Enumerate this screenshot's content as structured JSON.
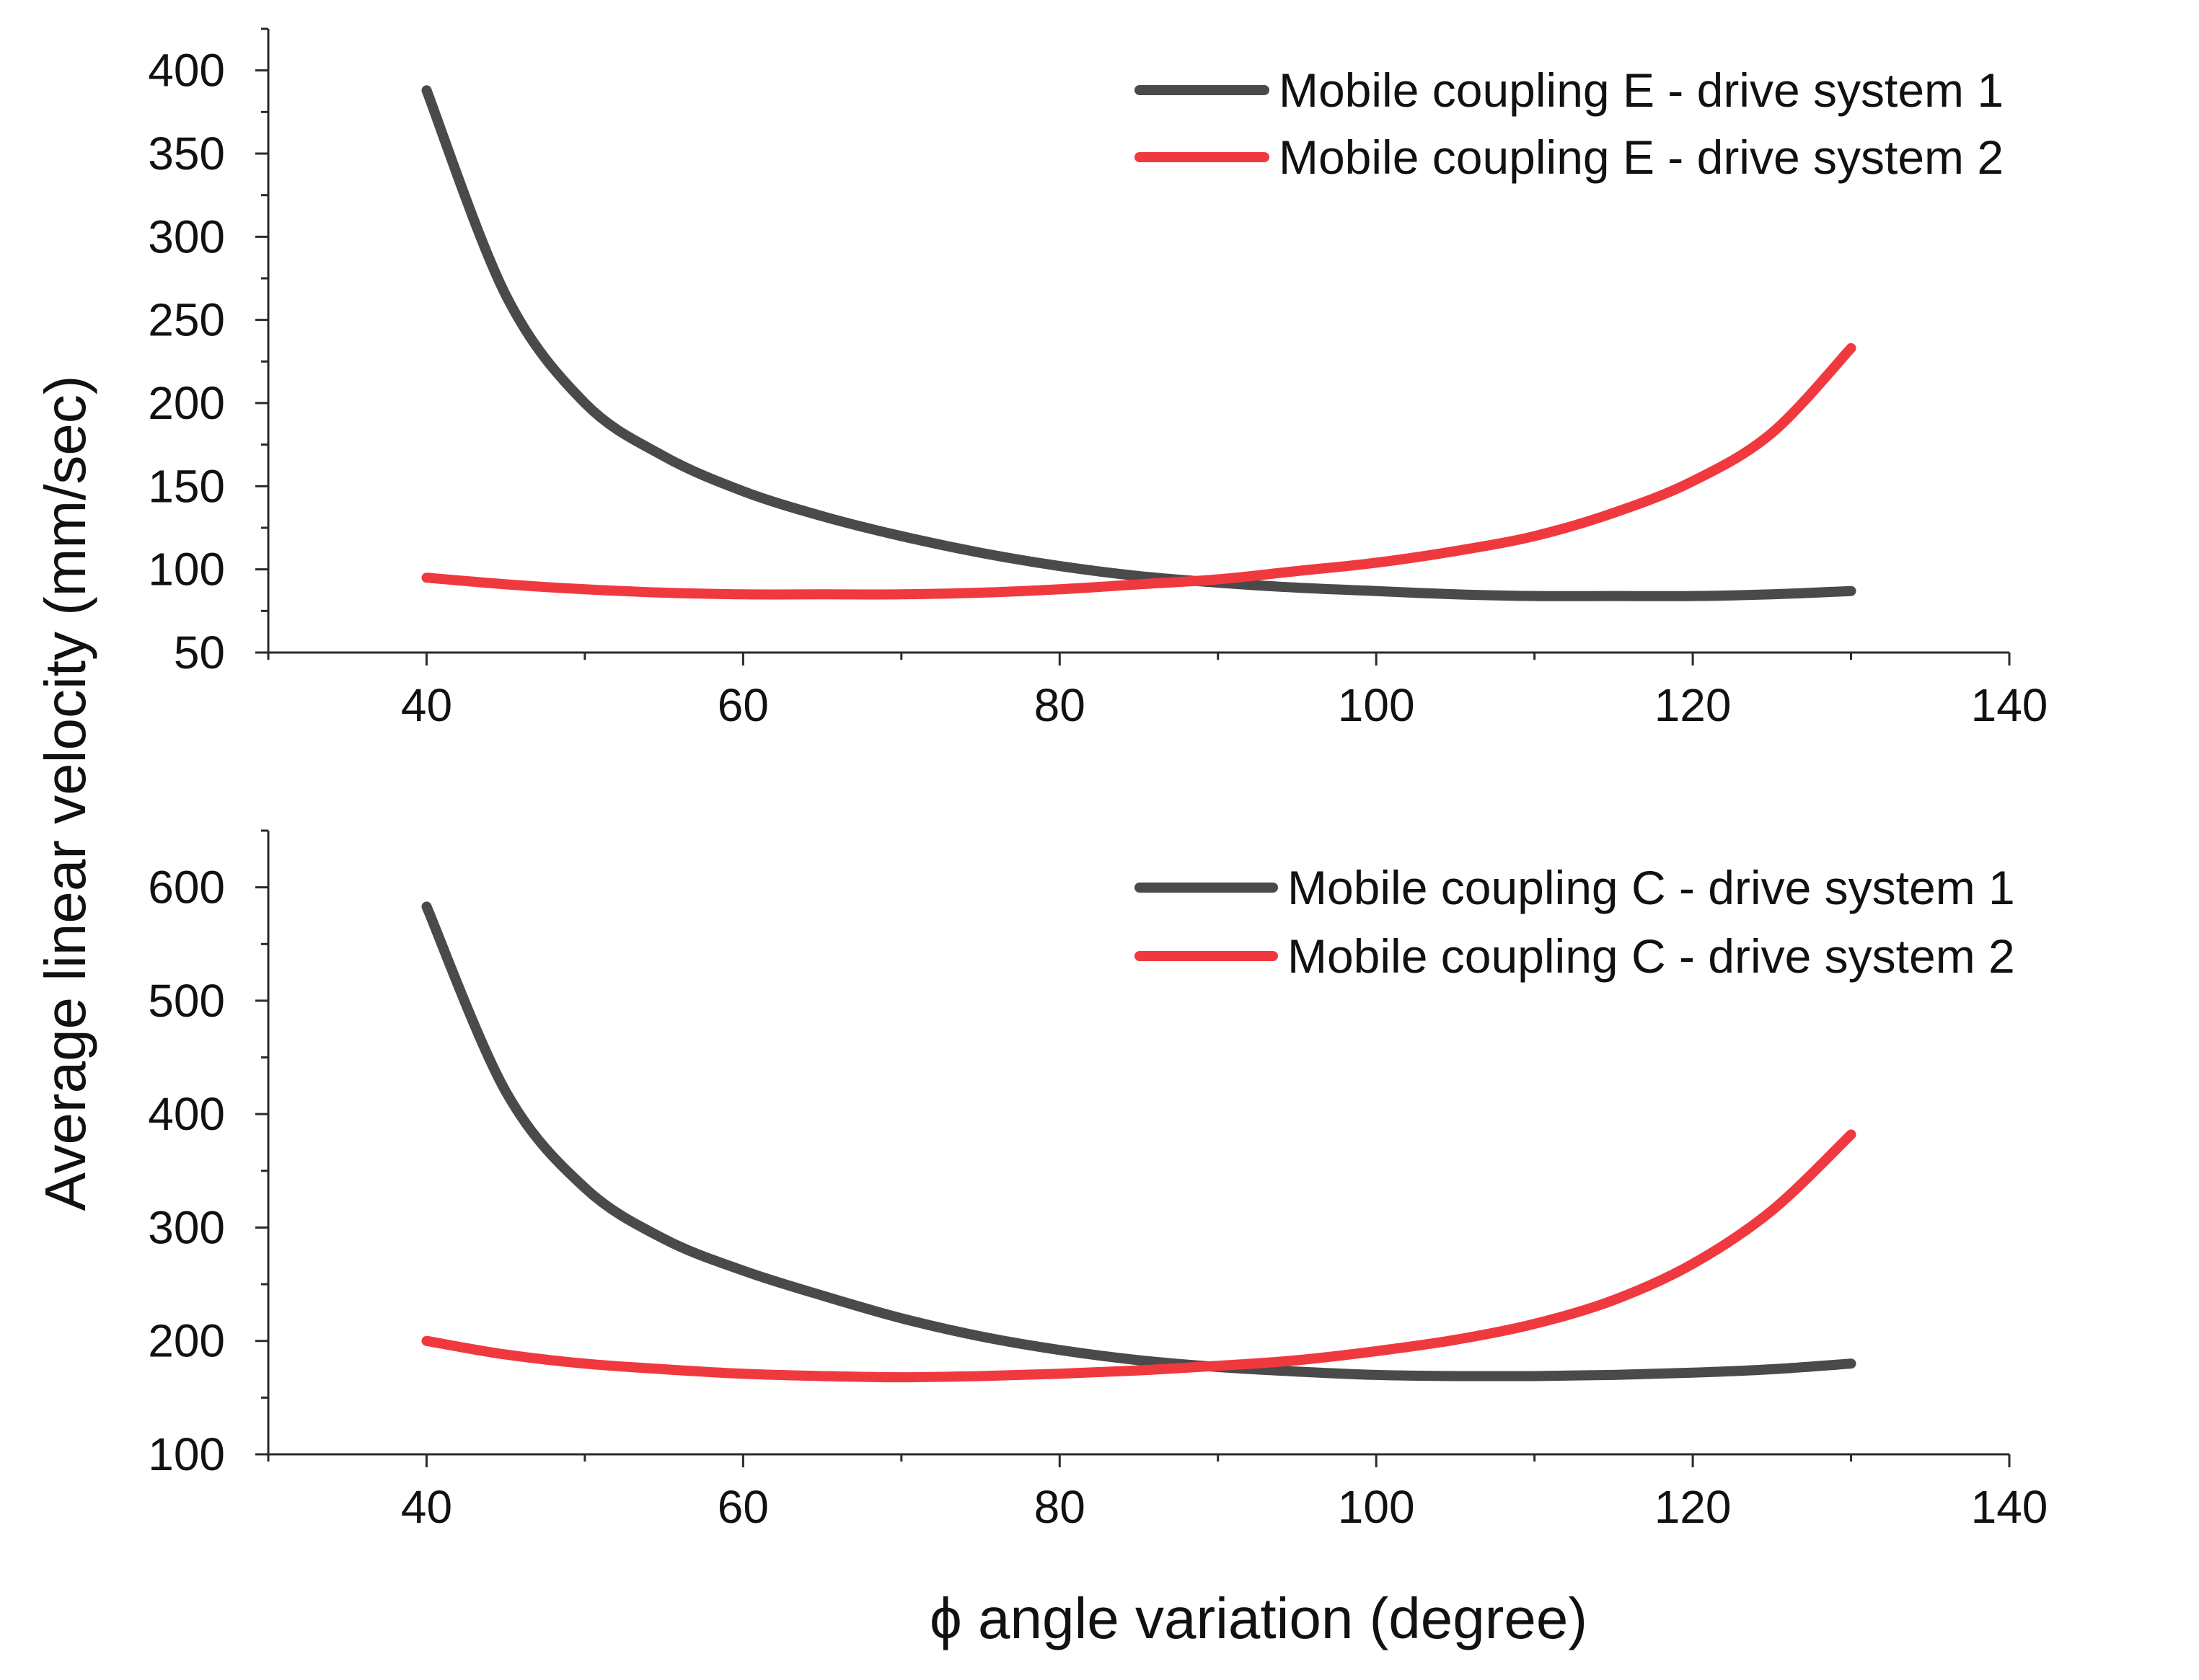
{
  "figure": {
    "ylabel": "Average linear velocity (mm/sec)",
    "xlabel": "ϕ angle variation (degree)"
  },
  "chart_data": [
    {
      "type": "line",
      "title": "",
      "xlim": [
        30,
        140
      ],
      "ylim": [
        50,
        425
      ],
      "xticks": [
        40,
        60,
        80,
        100,
        120,
        140
      ],
      "xtick_labels": [
        "40",
        "60",
        "80",
        "100",
        "120",
        "140"
      ],
      "yticks": [
        50,
        100,
        150,
        200,
        250,
        300,
        350,
        400
      ],
      "ytick_labels": [
        "50",
        "100",
        "150",
        "200",
        "250",
        "300",
        "350",
        "400"
      ],
      "legend_position": "top-right",
      "x": [
        40,
        45,
        50,
        55,
        60,
        65,
        70,
        75,
        80,
        85,
        90,
        95,
        100,
        105,
        110,
        115,
        120,
        125,
        130
      ],
      "series": [
        {
          "name": "Mobile coupling E - drive system 1",
          "color": "#4a4a4a",
          "values": [
            388,
            265,
            200,
            168,
            147,
            132,
            120,
            110,
            102,
            96,
            92,
            89,
            87,
            85,
            84,
            84,
            84,
            85,
            87
          ]
        },
        {
          "name": "Mobile coupling E - drive system 2",
          "color": "#f0393f",
          "values": [
            95,
            91,
            88,
            86,
            85,
            85,
            85,
            86,
            88,
            91,
            94,
            99,
            104,
            111,
            120,
            134,
            153,
            182,
            233
          ]
        }
      ]
    },
    {
      "type": "line",
      "title": "",
      "xlim": [
        30,
        140
      ],
      "ylim": [
        100,
        650
      ],
      "xticks": [
        40,
        60,
        80,
        100,
        120,
        140
      ],
      "xtick_labels": [
        "40",
        "60",
        "80",
        "100",
        "120",
        "140"
      ],
      "yticks": [
        100,
        200,
        300,
        400,
        500,
        600
      ],
      "ytick_labels": [
        "100",
        "200",
        "300",
        "400",
        "500",
        "600"
      ],
      "legend_position": "top-right",
      "x": [
        40,
        45,
        50,
        55,
        60,
        65,
        70,
        75,
        80,
        85,
        90,
        95,
        100,
        105,
        110,
        115,
        120,
        125,
        130
      ],
      "series": [
        {
          "name": "Mobile coupling C - drive system 1",
          "color": "#4a4a4a",
          "values": [
            583,
            420,
            335,
            290,
            262,
            240,
            220,
            204,
            192,
            183,
            177,
            173,
            170,
            169,
            169,
            170,
            172,
            175,
            180
          ]
        },
        {
          "name": "Mobile coupling C - drive system 2",
          "color": "#f0393f",
          "values": [
            200,
            188,
            180,
            175,
            171,
            169,
            168,
            169,
            171,
            174,
            178,
            183,
            191,
            201,
            215,
            236,
            268,
            315,
            382
          ]
        }
      ]
    }
  ]
}
